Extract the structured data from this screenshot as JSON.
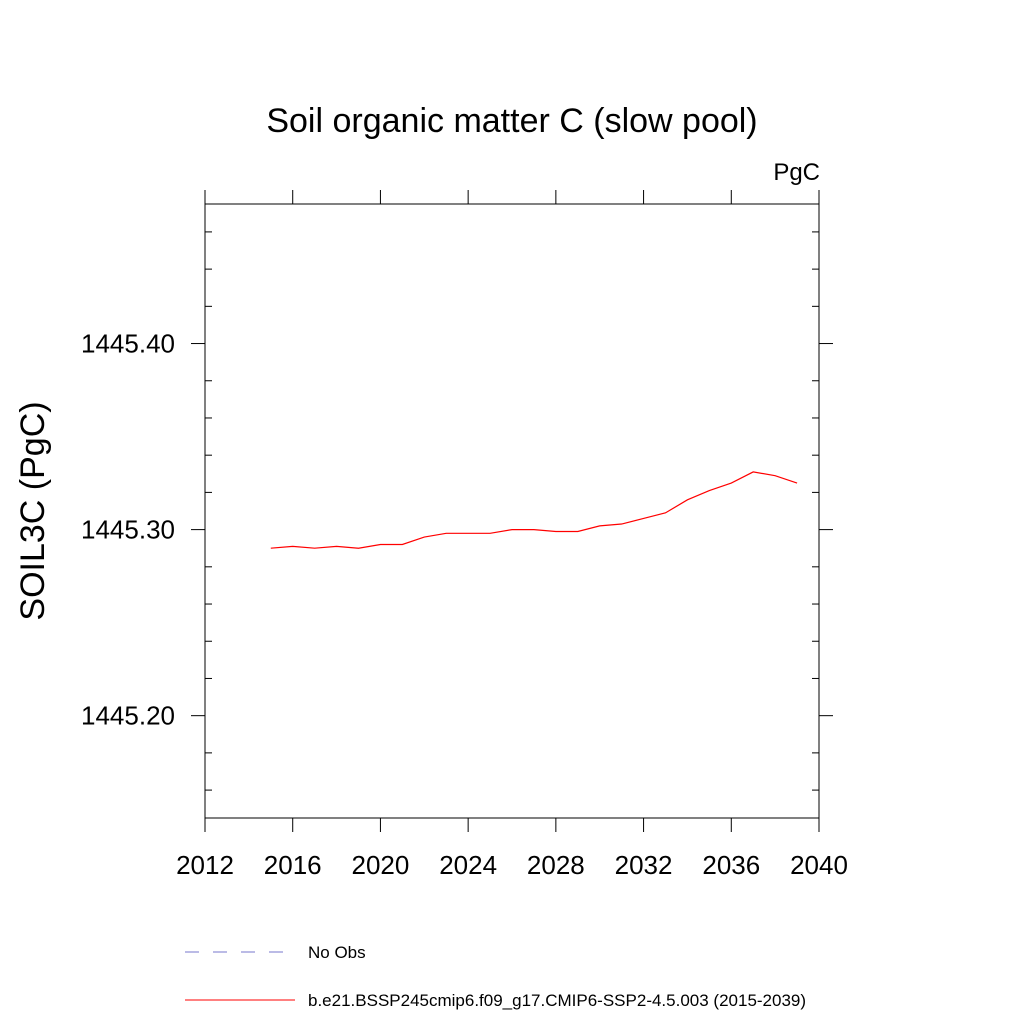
{
  "chart_data": {
    "type": "line",
    "title": "Soil organic matter C (slow pool)",
    "units": "PgC",
    "xlabel": "",
    "ylabel": "SOIL3C  (PgC)",
    "xlim": [
      2012,
      2040
    ],
    "ylim": [
      1445.145,
      1445.475
    ],
    "x_ticks": [
      2012,
      2016,
      2020,
      2024,
      2028,
      2032,
      2036,
      2040
    ],
    "x_tick_labels": [
      "2012",
      "2016",
      "2020",
      "2024",
      "2028",
      "2032",
      "2036",
      "2040"
    ],
    "y_major_ticks": [
      1445.2,
      1445.3,
      1445.4
    ],
    "y_tick_labels": [
      "1445.20",
      "1445.30",
      "1445.40"
    ],
    "y_minor_step": 0.02,
    "grid": false,
    "series": [
      {
        "name": "b.e21.BSSP245cmip6.f09_g17.CMIP6-SSP2-4.5.003 (2015-2039)",
        "color": "#ff0000",
        "style": "solid",
        "x": [
          2015,
          2016,
          2017,
          2018,
          2019,
          2020,
          2021,
          2022,
          2023,
          2024,
          2025,
          2026,
          2027,
          2028,
          2029,
          2030,
          2031,
          2032,
          2033,
          2034,
          2035,
          2036,
          2037,
          2038,
          2039
        ],
        "values": [
          1445.29,
          1445.291,
          1445.29,
          1445.291,
          1445.29,
          1445.292,
          1445.292,
          1445.296,
          1445.298,
          1445.298,
          1445.298,
          1445.3,
          1445.3,
          1445.299,
          1445.299,
          1445.302,
          1445.303,
          1445.306,
          1445.309,
          1445.316,
          1445.321,
          1445.325,
          1445.331,
          1445.329,
          1445.325
        ]
      }
    ],
    "legend": {
      "placement": "bottom-left",
      "entries": [
        {
          "label": "No Obs",
          "color": "#7777cc",
          "style": "dashed"
        },
        {
          "label": "b.e21.BSSP245cmip6.f09_g17.CMIP6-SSP2-4.5.003 (2015-2039)",
          "color": "#ff0000",
          "style": "solid"
        }
      ]
    }
  }
}
